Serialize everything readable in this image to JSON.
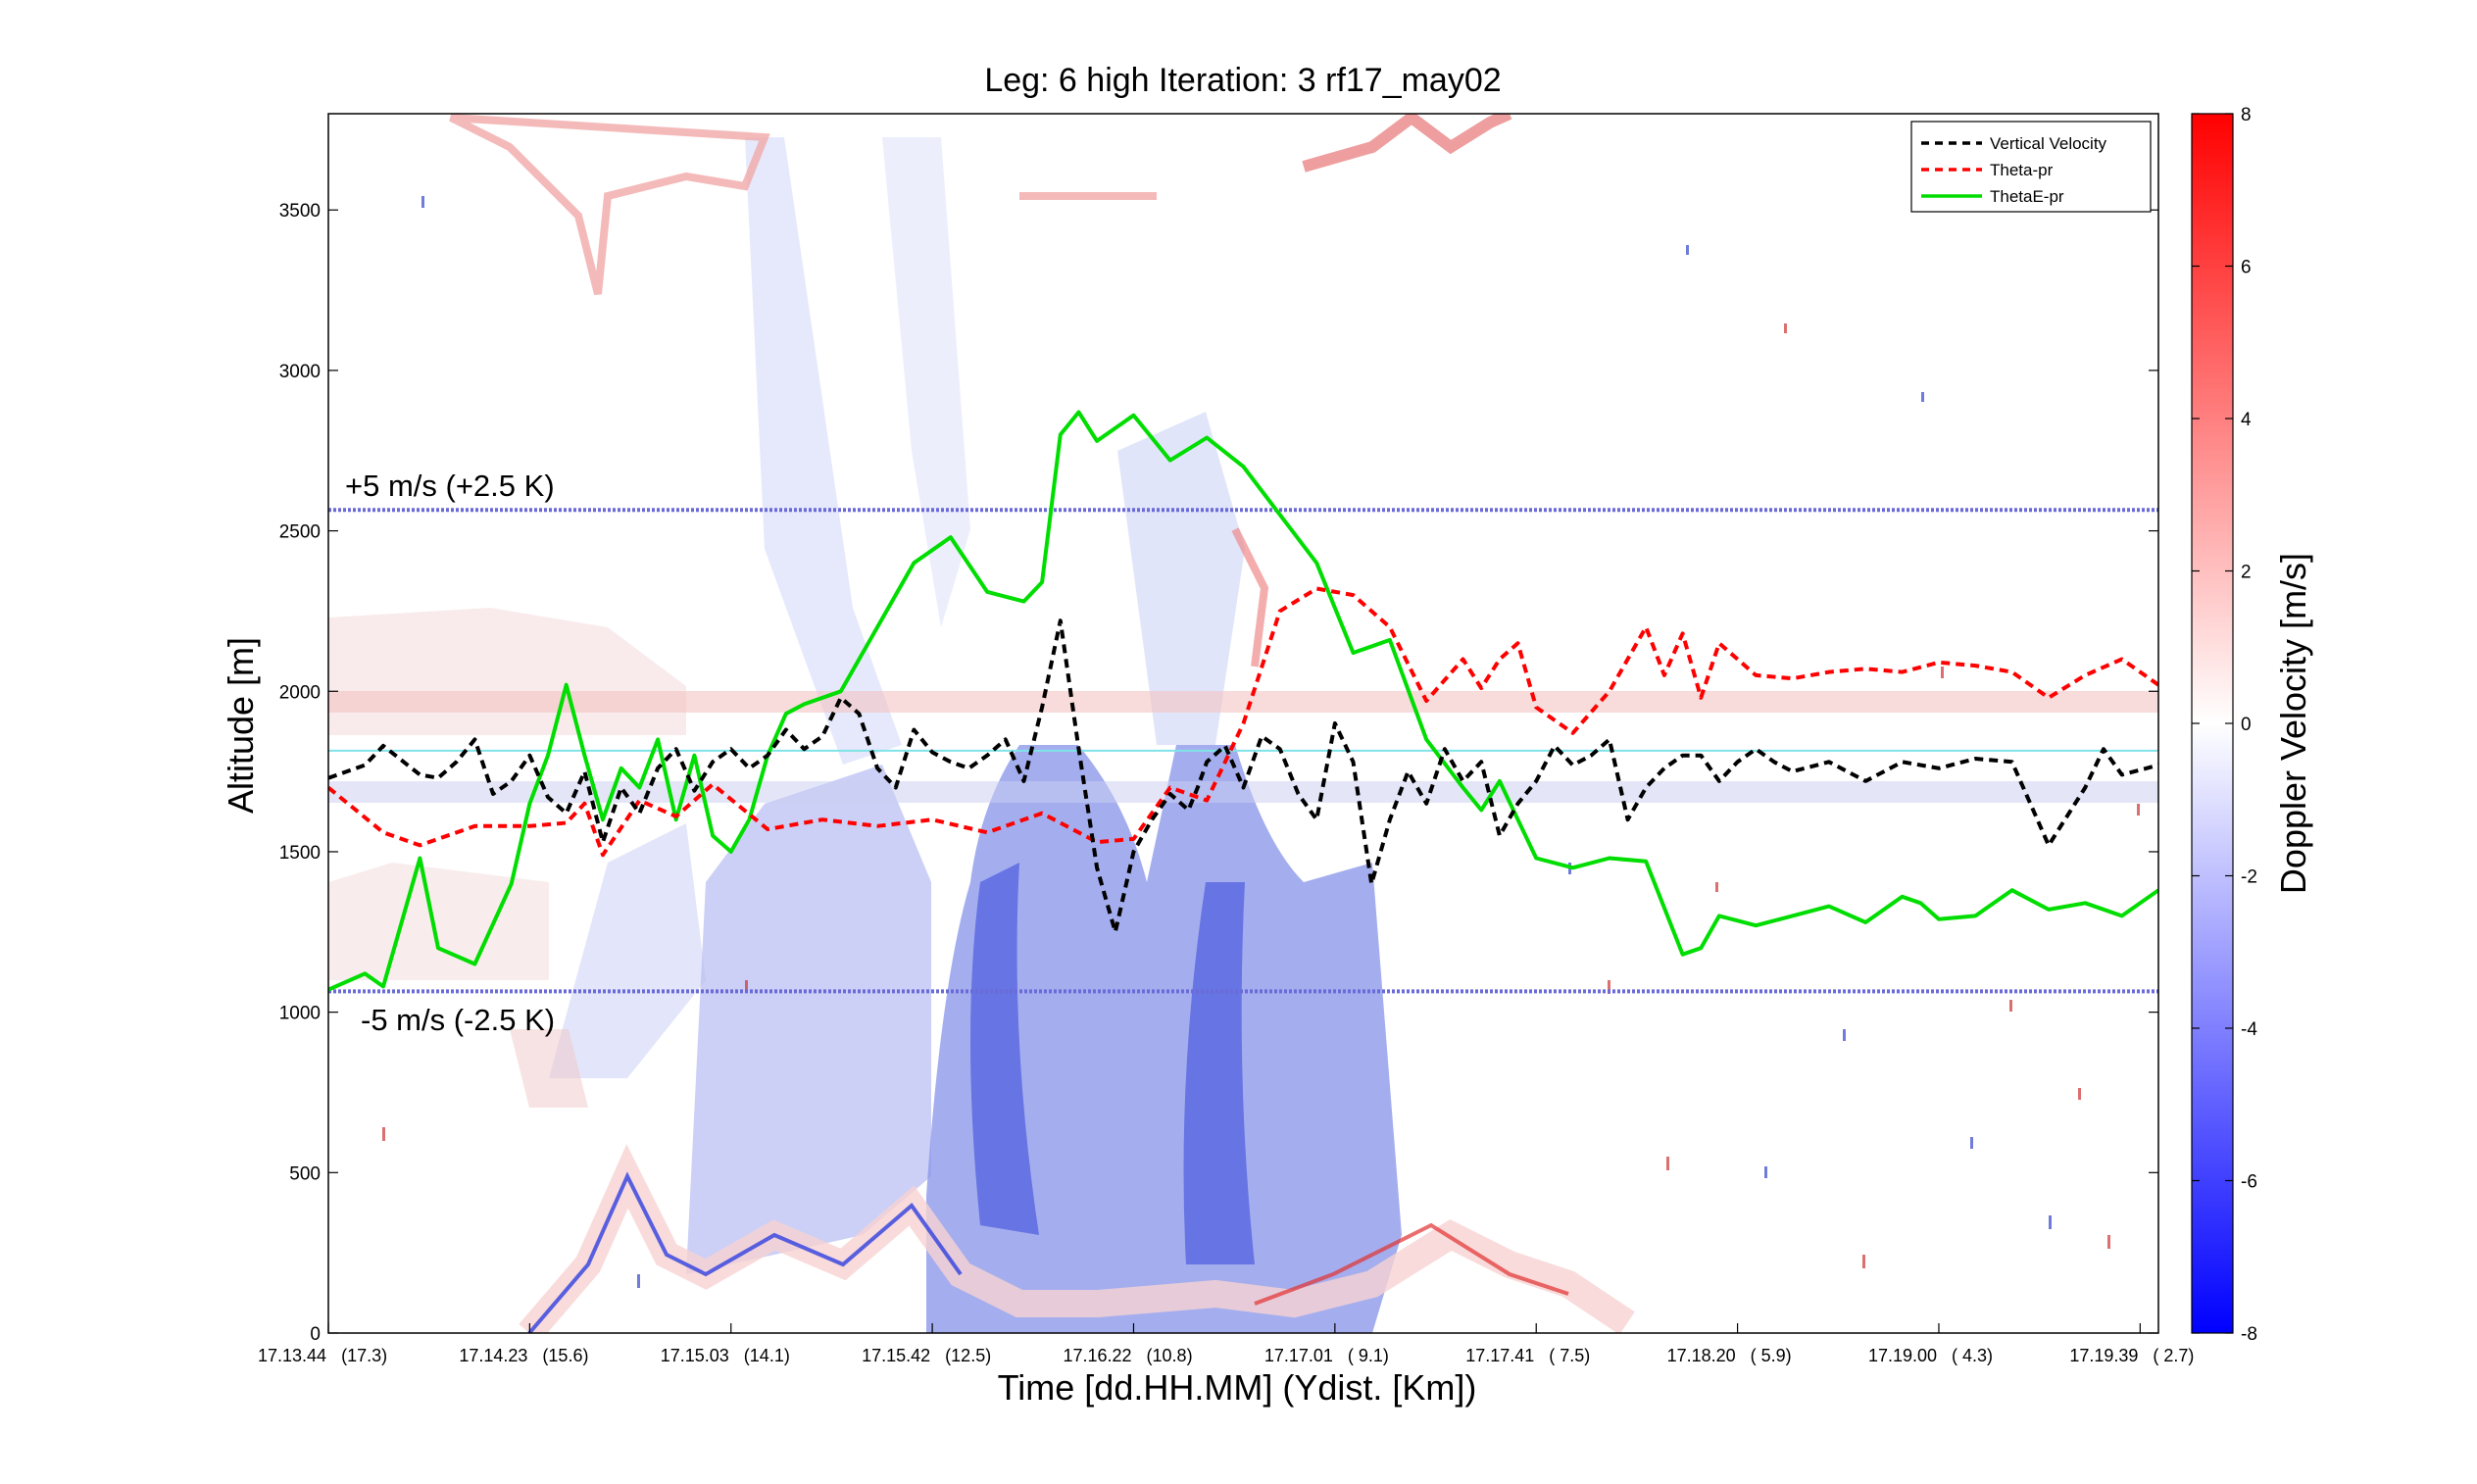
{
  "chart_data": {
    "type": "line",
    "title": "Leg: 6 high Iteration: 3  rf17_may02",
    "xlabel": "Time [dd.HH.MM]     (Ydist. [Km])",
    "ylabel": "Altitude [m]",
    "ylim": [
      0,
      3800
    ],
    "yticks": [
      0,
      500,
      1000,
      1500,
      2000,
      2500,
      3000,
      3500
    ],
    "xlim": [
      0,
      1
    ],
    "xticks": [
      {
        "pos": 0.0,
        "label": "17.13.44   (17.3)"
      },
      {
        "pos": 0.11,
        "label": "17.14.23   (15.6)"
      },
      {
        "pos": 0.22,
        "label": "17.15.03   (14.1)"
      },
      {
        "pos": 0.33,
        "label": "17.15.42   (12.5)"
      },
      {
        "pos": 0.44,
        "label": "17.16.22   (10.8)"
      },
      {
        "pos": 0.55,
        "label": "17.17.01   ( 9.1)"
      },
      {
        "pos": 0.66,
        "label": "17.17.41   ( 7.5)"
      },
      {
        "pos": 0.77,
        "label": "17.18.20   ( 5.9)"
      },
      {
        "pos": 0.88,
        "label": "17.19.00   ( 4.3)"
      },
      {
        "pos": 0.99,
        "label": "17.19.39   ( 2.7)"
      }
    ],
    "reference_lines": [
      {
        "y": 2565,
        "label": "+5 m/s (+2.5 K)",
        "color": "#6a6ad8"
      },
      {
        "y": 1065,
        "label": "-5 m/s (-2.5 K)",
        "color": "#6a6ad8"
      },
      {
        "y": 1815,
        "color": "#7fe3e8"
      }
    ],
    "legend": {
      "position": "top-right",
      "entries": [
        {
          "name": "Vertical Velocity",
          "color": "#000000",
          "style": "dashed"
        },
        {
          "name": "Theta-pr",
          "color": "#ff0000",
          "style": "dashed"
        },
        {
          "name": "ThetaE-pr",
          "color": "#00dd00",
          "style": "solid"
        }
      ]
    },
    "series": [
      {
        "name": "Vertical Velocity",
        "color": "#000000",
        "style": "dashed",
        "x": [
          0,
          0.02,
          0.03,
          0.05,
          0.06,
          0.07,
          0.08,
          0.09,
          0.1,
          0.11,
          0.12,
          0.13,
          0.14,
          0.15,
          0.16,
          0.17,
          0.18,
          0.19,
          0.2,
          0.21,
          0.22,
          0.23,
          0.24,
          0.25,
          0.26,
          0.27,
          0.28,
          0.29,
          0.3,
          0.31,
          0.32,
          0.33,
          0.34,
          0.35,
          0.36,
          0.37,
          0.38,
          0.39,
          0.4,
          0.41,
          0.42,
          0.43,
          0.44,
          0.45,
          0.46,
          0.47,
          0.475,
          0.48,
          0.49,
          0.5,
          0.51,
          0.52,
          0.53,
          0.54,
          0.55,
          0.56,
          0.57,
          0.58,
          0.59,
          0.6,
          0.61,
          0.62,
          0.63,
          0.64,
          0.65,
          0.66,
          0.67,
          0.68,
          0.69,
          0.7,
          0.71,
          0.72,
          0.73,
          0.74,
          0.75,
          0.76,
          0.77,
          0.78,
          0.79,
          0.8,
          0.82,
          0.84,
          0.86,
          0.88,
          0.9,
          0.92,
          0.94,
          0.96,
          0.97,
          0.98,
          1.0
        ],
        "y": [
          1730,
          1770,
          1830,
          1740,
          1730,
          1780,
          1850,
          1680,
          1720,
          1800,
          1670,
          1620,
          1750,
          1530,
          1700,
          1620,
          1760,
          1820,
          1690,
          1780,
          1820,
          1760,
          1800,
          1880,
          1820,
          1860,
          1980,
          1930,
          1760,
          1700,
          1880,
          1810,
          1780,
          1760,
          1800,
          1850,
          1720,
          1950,
          2220,
          1820,
          1450,
          1250,
          1500,
          1600,
          1680,
          1630,
          1700,
          1780,
          1830,
          1700,
          1860,
          1820,
          1680,
          1600,
          1900,
          1780,
          1400,
          1600,
          1750,
          1650,
          1820,
          1720,
          1780,
          1550,
          1650,
          1720,
          1830,
          1770,
          1800,
          1850,
          1600,
          1700,
          1760,
          1800,
          1800,
          1720,
          1780,
          1820,
          1780,
          1750,
          1780,
          1720,
          1780,
          1760,
          1790,
          1780,
          1520,
          1700,
          1820,
          1740,
          1770
        ]
      },
      {
        "name": "Theta-pr",
        "color": "#ff0000",
        "style": "dashed",
        "x": [
          0,
          0.03,
          0.05,
          0.08,
          0.11,
          0.13,
          0.14,
          0.15,
          0.17,
          0.19,
          0.21,
          0.24,
          0.27,
          0.3,
          0.33,
          0.36,
          0.39,
          0.42,
          0.44,
          0.46,
          0.48,
          0.5,
          0.52,
          0.54,
          0.56,
          0.58,
          0.6,
          0.62,
          0.63,
          0.64,
          0.65,
          0.66,
          0.68,
          0.7,
          0.72,
          0.73,
          0.74,
          0.75,
          0.76,
          0.77,
          0.78,
          0.8,
          0.82,
          0.84,
          0.86,
          0.88,
          0.9,
          0.92,
          0.94,
          0.96,
          0.98,
          1.0
        ],
        "y": [
          1700,
          1560,
          1520,
          1580,
          1580,
          1590,
          1650,
          1490,
          1660,
          1610,
          1710,
          1570,
          1600,
          1580,
          1600,
          1560,
          1620,
          1530,
          1540,
          1700,
          1660,
          1900,
          2250,
          2320,
          2300,
          2200,
          1970,
          2100,
          2010,
          2100,
          2150,
          1950,
          1870,
          2000,
          2200,
          2050,
          2180,
          1980,
          2150,
          2100,
          2050,
          2040,
          2060,
          2070,
          2060,
          2090,
          2080,
          2060,
          1980,
          2050,
          2100,
          2020
        ]
      },
      {
        "name": "ThetaE-pr",
        "color": "#00dd00",
        "style": "solid",
        "x": [
          0,
          0.02,
          0.03,
          0.05,
          0.06,
          0.08,
          0.1,
          0.11,
          0.12,
          0.13,
          0.14,
          0.15,
          0.16,
          0.17,
          0.18,
          0.19,
          0.2,
          0.21,
          0.22,
          0.23,
          0.24,
          0.25,
          0.26,
          0.28,
          0.3,
          0.32,
          0.34,
          0.36,
          0.38,
          0.39,
          0.4,
          0.41,
          0.42,
          0.44,
          0.46,
          0.48,
          0.5,
          0.52,
          0.54,
          0.56,
          0.58,
          0.6,
          0.62,
          0.63,
          0.64,
          0.65,
          0.66,
          0.68,
          0.7,
          0.72,
          0.74,
          0.75,
          0.76,
          0.78,
          0.8,
          0.82,
          0.84,
          0.86,
          0.87,
          0.88,
          0.9,
          0.92,
          0.94,
          0.96,
          0.98,
          1.0
        ],
        "y": [
          1070,
          1120,
          1080,
          1480,
          1200,
          1150,
          1400,
          1650,
          1800,
          2020,
          1800,
          1600,
          1760,
          1700,
          1850,
          1600,
          1800,
          1550,
          1500,
          1600,
          1800,
          1930,
          1960,
          2000,
          2200,
          2400,
          2480,
          2310,
          2280,
          2340,
          2800,
          2870,
          2780,
          2860,
          2720,
          2790,
          2700,
          2550,
          2400,
          2120,
          2160,
          1850,
          1700,
          1630,
          1720,
          1600,
          1480,
          1450,
          1480,
          1470,
          1180,
          1200,
          1300,
          1270,
          1300,
          1330,
          1280,
          1360,
          1340,
          1290,
          1300,
          1380,
          1320,
          1340,
          1300,
          1380
        ]
      }
    ],
    "colorbar": {
      "label": "Doppler Velocity [m/s]",
      "range": [
        -8,
        8
      ],
      "ticks": [
        8,
        6,
        4,
        2,
        0,
        -2,
        -4,
        -6,
        -8
      ],
      "colormap": [
        "#0000ff",
        "#ffffff",
        "#ff0000"
      ]
    }
  }
}
